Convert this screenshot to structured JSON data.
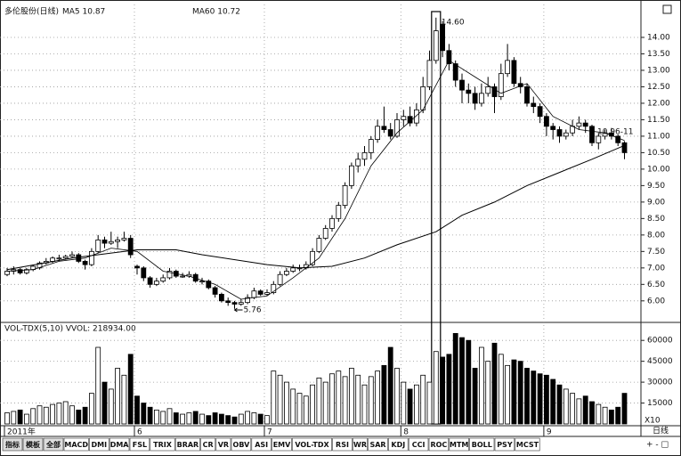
{
  "chart_data": {
    "type": "candlestick",
    "header": {
      "title": "多伦股份(日线)",
      "ma5": "MA5 10.87",
      "ma60": "MA60 10.72"
    },
    "open": [
      6.8,
      6.9,
      6.95,
      6.85,
      6.95,
      7.0,
      7.15,
      7.2,
      7.3,
      7.3,
      7.35,
      7.4,
      7.2,
      7.1,
      7.5,
      7.85,
      7.75,
      7.8,
      7.85,
      7.9,
      7.05,
      7.0,
      6.7,
      6.5,
      6.6,
      6.7,
      6.9,
      6.75,
      6.75,
      6.8,
      6.6,
      6.6,
      6.4,
      6.2,
      6.0,
      5.95,
      5.9,
      5.95,
      6.1,
      6.3,
      6.2,
      6.25,
      6.5,
      6.8,
      6.9,
      7.0,
      7.0,
      7.1,
      7.5,
      7.9,
      8.2,
      8.5,
      8.9,
      9.5,
      10.1,
      10.3,
      10.5,
      10.9,
      11.3,
      11.2,
      11.0,
      11.5,
      11.6,
      11.4,
      11.8,
      12.5,
      13.3,
      14.4,
      13.6,
      13.2,
      12.7,
      12.4,
      12.3,
      12.0,
      12.3,
      12.5,
      12.2,
      12.9,
      13.3,
      12.6,
      12.5,
      12.0,
      11.9,
      11.6,
      11.3,
      11.2,
      11.0,
      11.1,
      11.3,
      11.4,
      11.3,
      10.8,
      11.0,
      11.1,
      11.0,
      10.8
    ],
    "high": [
      7.0,
      7.05,
      7.0,
      7.0,
      7.1,
      7.2,
      7.3,
      7.35,
      7.4,
      7.4,
      7.5,
      7.45,
      7.25,
      7.6,
      8.0,
      7.95,
      8.1,
      7.95,
      8.1,
      8.0,
      7.1,
      7.05,
      6.75,
      6.7,
      6.8,
      7.0,
      6.95,
      6.85,
      6.9,
      6.85,
      6.7,
      6.65,
      6.45,
      6.25,
      6.1,
      6.0,
      6.05,
      6.2,
      6.4,
      6.35,
      6.35,
      6.6,
      6.9,
      7.0,
      7.1,
      7.1,
      7.2,
      7.6,
      8.0,
      8.3,
      8.6,
      9.0,
      9.6,
      10.2,
      10.5,
      10.7,
      11.0,
      11.5,
      11.9,
      11.4,
      11.7,
      11.8,
      11.9,
      12.0,
      12.8,
      13.6,
      14.6,
      14.5,
      13.8,
      13.3,
      12.9,
      12.6,
      12.5,
      12.6,
      12.8,
      12.6,
      13.2,
      13.8,
      13.4,
      12.8,
      12.6,
      12.2,
      12.0,
      11.7,
      11.4,
      11.3,
      11.2,
      11.5,
      11.6,
      11.5,
      11.35,
      11.1,
      11.2,
      11.25,
      11.05,
      10.85
    ],
    "low": [
      6.75,
      6.8,
      6.8,
      6.8,
      6.9,
      6.95,
      7.1,
      7.15,
      7.2,
      7.25,
      7.3,
      7.15,
      6.95,
      7.05,
      7.45,
      7.6,
      7.7,
      7.6,
      7.8,
      7.3,
      6.8,
      6.6,
      6.4,
      6.45,
      6.55,
      6.65,
      6.7,
      6.7,
      6.7,
      6.55,
      6.5,
      6.35,
      6.1,
      5.95,
      5.85,
      5.76,
      5.85,
      5.9,
      6.05,
      6.15,
      6.15,
      6.2,
      6.45,
      6.75,
      6.85,
      6.9,
      6.95,
      7.05,
      7.45,
      7.85,
      8.1,
      8.4,
      8.8,
      9.4,
      9.9,
      10.1,
      10.3,
      10.8,
      11.1,
      10.9,
      10.95,
      11.3,
      11.3,
      11.3,
      11.7,
      12.4,
      13.2,
      13.4,
      13.0,
      12.5,
      12.0,
      12.0,
      11.8,
      11.9,
      12.2,
      11.7,
      12.1,
      12.8,
      12.5,
      12.3,
      11.9,
      11.7,
      11.4,
      11.0,
      10.9,
      10.8,
      10.9,
      11.0,
      11.2,
      11.1,
      10.7,
      10.6,
      10.9,
      10.9,
      10.7,
      10.3
    ],
    "close": [
      6.9,
      6.95,
      6.85,
      6.95,
      7.05,
      7.15,
      7.2,
      7.3,
      7.3,
      7.35,
      7.4,
      7.2,
      7.1,
      7.5,
      7.85,
      7.75,
      7.8,
      7.85,
      7.9,
      7.4,
      7.0,
      6.7,
      6.5,
      6.6,
      6.7,
      6.9,
      6.75,
      6.75,
      6.8,
      6.6,
      6.6,
      6.4,
      6.2,
      6.0,
      5.95,
      5.9,
      5.95,
      6.1,
      6.3,
      6.2,
      6.25,
      6.5,
      6.8,
      6.9,
      7.0,
      7.0,
      7.1,
      7.5,
      7.9,
      8.2,
      8.5,
      8.9,
      9.5,
      10.1,
      10.3,
      10.5,
      10.9,
      11.3,
      11.2,
      11.0,
      11.5,
      11.6,
      11.4,
      11.8,
      12.5,
      13.3,
      14.2,
      13.6,
      13.2,
      12.7,
      12.4,
      12.3,
      12.0,
      12.3,
      12.5,
      12.2,
      12.9,
      13.3,
      12.6,
      12.5,
      12.0,
      11.9,
      11.6,
      11.3,
      11.2,
      11.0,
      11.1,
      11.3,
      11.4,
      11.3,
      10.8,
      11.0,
      11.1,
      11.0,
      10.8,
      10.5
    ],
    "volume": [
      8000,
      9000,
      10000,
      7000,
      11000,
      13000,
      12000,
      14000,
      15000,
      16000,
      13000,
      10000,
      12000,
      22000,
      55000,
      30000,
      25000,
      40000,
      35000,
      50000,
      20000,
      15000,
      12000,
      10000,
      9000,
      11000,
      8000,
      7000,
      8000,
      9000,
      7000,
      6000,
      8000,
      7000,
      6000,
      5000,
      7000,
      9000,
      8000,
      7000,
      6000,
      38000,
      35000,
      30000,
      25000,
      22000,
      20000,
      28000,
      33000,
      30000,
      36000,
      38000,
      34000,
      40000,
      35000,
      28000,
      34000,
      38000,
      42000,
      55000,
      40000,
      30000,
      25000,
      28000,
      35000,
      30000,
      52000,
      48000,
      50000,
      65000,
      62000,
      60000,
      40000,
      55000,
      45000,
      58000,
      50000,
      42000,
      46000,
      45000,
      40000,
      38000,
      36000,
      35000,
      32000,
      28000,
      25000,
      22000,
      18000,
      20000,
      16000,
      14000,
      12000,
      10000,
      12000,
      22000
    ],
    "lines": [
      {
        "name": "MA5",
        "color": "#000000",
        "x": [
          0,
          4,
          8,
          12,
          16,
          20,
          24,
          28,
          32,
          36,
          40,
          44,
          48,
          52,
          56,
          60,
          64,
          68,
          72,
          76,
          80,
          84,
          88,
          92,
          95
        ],
        "values": [
          6.9,
          6.95,
          7.2,
          7.3,
          7.6,
          7.5,
          6.9,
          6.75,
          6.5,
          6.05,
          6.15,
          6.7,
          7.3,
          8.5,
          10.1,
          11.1,
          11.8,
          13.3,
          12.8,
          12.3,
          12.6,
          11.6,
          11.2,
          11.1,
          10.87
        ]
      },
      {
        "name": "MA60",
        "color": "#000000",
        "x": [
          0,
          10,
          20,
          26,
          30,
          40,
          45,
          50,
          55,
          60,
          66,
          70,
          75,
          80,
          85,
          90,
          95
        ],
        "values": [
          6.95,
          7.3,
          7.55,
          7.55,
          7.4,
          7.1,
          7.0,
          7.05,
          7.3,
          7.7,
          8.1,
          8.6,
          9.0,
          9.5,
          9.9,
          10.3,
          10.72
        ]
      }
    ],
    "ylim": [
      5.4,
      15.0
    ],
    "yticks": [
      {
        "value": 6,
        "label": "6.00"
      },
      {
        "value": 6.5,
        "label": "6.50"
      },
      {
        "value": 7,
        "label": "7.00"
      },
      {
        "value": 7.5,
        "label": "7.50"
      },
      {
        "value": 8,
        "label": "8.00"
      },
      {
        "value": 8.5,
        "label": "8.50"
      },
      {
        "value": 9,
        "label": "9.00"
      },
      {
        "value": 9.5,
        "label": "9.50"
      },
      {
        "value": 10,
        "label": "10.00"
      },
      {
        "value": 10.5,
        "label": "10.50"
      },
      {
        "value": 11,
        "label": "11.00"
      },
      {
        "value": 11.5,
        "label": "11.50"
      },
      {
        "value": 12,
        "label": "12.00"
      },
      {
        "value": 12.5,
        "label": "12.50"
      },
      {
        "value": 13,
        "label": "13.00"
      },
      {
        "value": 13.5,
        "label": "13.50"
      },
      {
        "value": 14,
        "label": "14.00"
      }
    ],
    "volume_title": "VOL-TDX(5,10) VVOL: 218934.00",
    "volume_ylim": [
      0,
      71000
    ],
    "volume_yticks": [
      15000,
      30000,
      45000,
      60000
    ],
    "volume_unit": "X10",
    "grid": true,
    "highlight_index": 66,
    "annotations": [
      {
        "index": 66,
        "text": "14.60"
      },
      {
        "index": 35,
        "text": "5.76"
      },
      {
        "index": 90,
        "text": "10.96-11"
      }
    ],
    "months": [
      {
        "index": 0,
        "label": "2011年"
      },
      {
        "index": 20,
        "label": "6"
      },
      {
        "index": 40,
        "label": "7"
      },
      {
        "index": 61,
        "label": "8"
      },
      {
        "index": 83,
        "label": "9"
      }
    ],
    "period": "日线",
    "tabs": [
      "指标",
      "模板",
      "全部",
      "MACD",
      "DMI",
      "DMA",
      "FSL",
      "TRIX",
      "BRAR",
      "CR",
      "VR",
      "OBV",
      "ASI",
      "EMV",
      "VOL-TDX",
      "RSI",
      "WR",
      "SAR",
      "KDJ",
      "CCI",
      "ROC",
      "MTM",
      "BOLL",
      "PSY",
      "MCST"
    ]
  }
}
